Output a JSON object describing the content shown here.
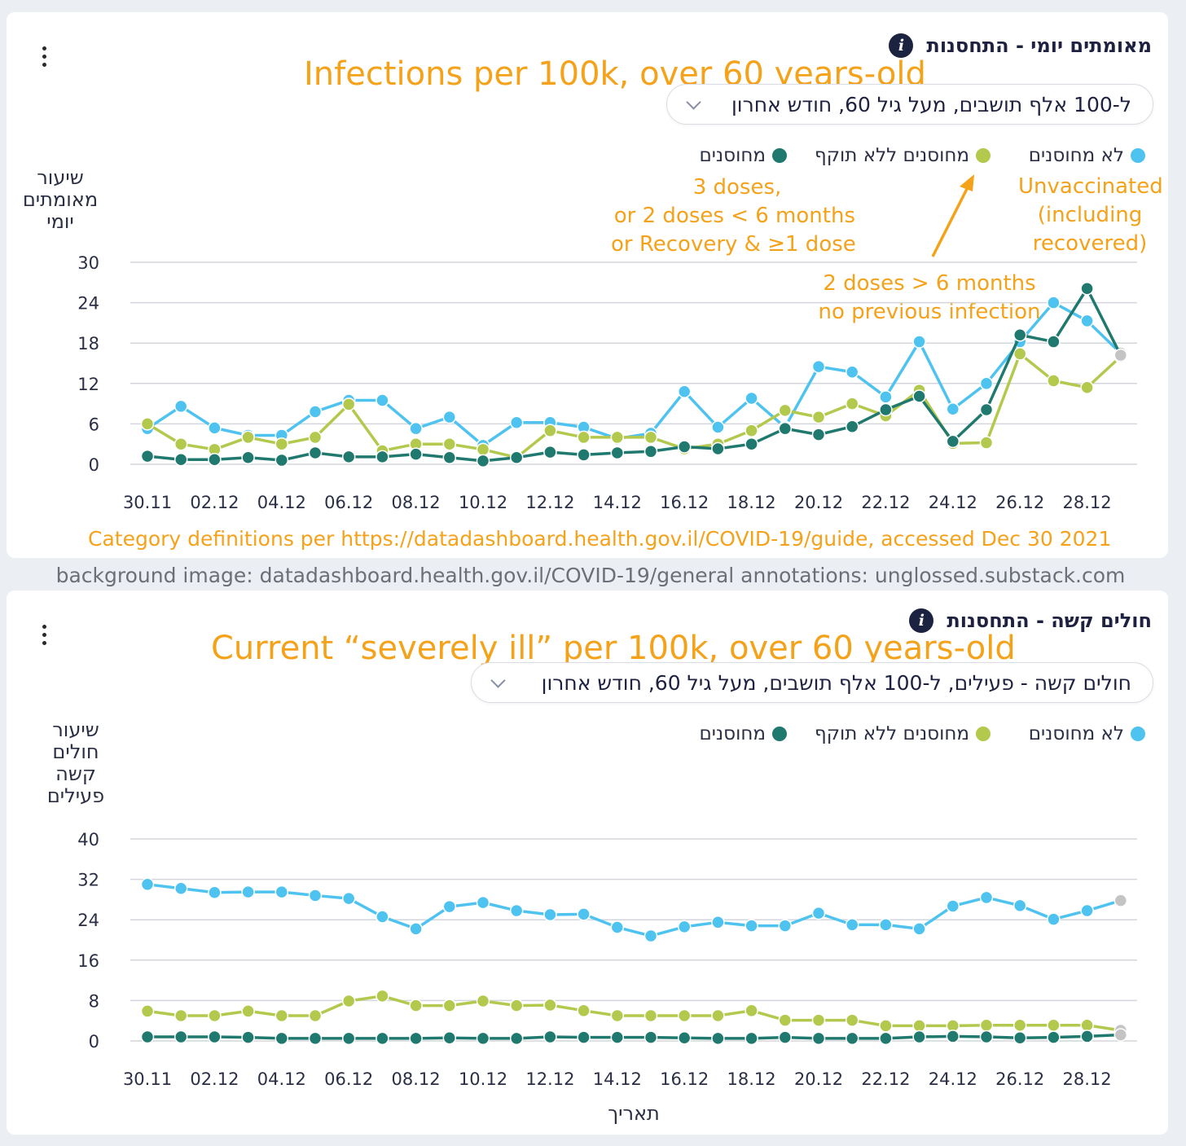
{
  "footer_credit": "background image: datadashboard.health.gov.il/COVID-19/general annotations: unglossed.substack.com",
  "colors": {
    "unvaccinated": "#4fc3f0",
    "expired": "#b2c94d",
    "protected": "#20796e",
    "grid": "#d3d6dc",
    "annotation": "#f5a21b",
    "last_point": "#c4c4c4"
  },
  "card1": {
    "title": "מאומתים יומי - התחסנות",
    "info_icon": "i",
    "annotation_title": "Infections per 100k, over 60 years-old",
    "dropdown": "ל-100 אלף תושבים, מעל גיל 60, חודש אחרון",
    "legend": [
      "לא מחוסנים",
      "מחוסנים ללא תוקף",
      "מחוסנים"
    ],
    "ylabel": [
      "שיעור",
      "מאומתים",
      "יומי"
    ],
    "annotations": {
      "unvaccinated": [
        "Unvaccinated",
        "(including",
        "recovered)"
      ],
      "protected": [
        "3 doses,",
        "or 2 doses < 6 months",
        "or Recovery & ≥1 dose"
      ],
      "expired": [
        "2 doses > 6 months",
        "no previous infection"
      ],
      "source": "Category definitions per https://datadashboard.health.gov.il/COVID-19/guide, accessed Dec 30 2021"
    }
  },
  "card2": {
    "title": "חולים קשה - התחסנות",
    "info_icon": "i",
    "annotation_title": "Current “severely ill” per 100k, over 60 years-old",
    "dropdown": "חולים קשה - פעילים, ל-100 אלף תושבים, מעל גיל 60, חודש אחרון",
    "legend": [
      "לא מחוסנים",
      "מחוסנים ללא תוקף",
      "מחוסנים"
    ],
    "ylabel": [
      "שיעור",
      "חולים",
      "קשה",
      "פעילים"
    ],
    "xlabel": "תאריך"
  },
  "chart_data": [
    {
      "type": "line",
      "title": "Infections per 100k, over 60 years-old",
      "ylabel": "שיעור מאומתים יומי",
      "ylim": [
        0,
        30
      ],
      "yticks": [
        0,
        6,
        12,
        18,
        24,
        30
      ],
      "x": [
        "30.11",
        "01.12",
        "02.12",
        "03.12",
        "04.12",
        "05.12",
        "06.12",
        "07.12",
        "08.12",
        "09.12",
        "10.12",
        "11.12",
        "12.12",
        "13.12",
        "14.12",
        "15.12",
        "16.12",
        "17.12",
        "18.12",
        "19.12",
        "20.12",
        "21.12",
        "22.12",
        "23.12",
        "24.12",
        "25.12",
        "26.12",
        "27.12",
        "28.12",
        "29.12"
      ],
      "xtick_labels": [
        "30.11",
        "02.12",
        "04.12",
        "06.12",
        "08.12",
        "10.12",
        "12.12",
        "14.12",
        "16.12",
        "18.12",
        "20.12",
        "22.12",
        "24.12",
        "26.12",
        "28.12"
      ],
      "grid": true,
      "legend_position": "top-right",
      "series": [
        {
          "name": "לא מחוסנים",
          "color": "#4fc3f0",
          "values": [
            5.3,
            8.6,
            5.4,
            4.3,
            4.3,
            7.8,
            9.5,
            9.5,
            5.3,
            7.0,
            2.8,
            6.2,
            6.2,
            5.5,
            3.8,
            4.6,
            10.8,
            5.5,
            9.8,
            5.5,
            14.5,
            13.7,
            10.0,
            18.2,
            8.2,
            12.0,
            18.2,
            24.0,
            21.3,
            16.5
          ]
        },
        {
          "name": "מחוסנים ללא תוקף",
          "color": "#b2c94d",
          "values": [
            6.0,
            3.0,
            2.2,
            4.0,
            3.0,
            4.0,
            8.9,
            2.0,
            3.0,
            3.0,
            2.2,
            1.0,
            5.0,
            4.0,
            4.0,
            4.0,
            2.3,
            3.0,
            5.0,
            8.0,
            7.0,
            9.0,
            7.2,
            11.0,
            3.1,
            3.2,
            16.4,
            12.4,
            11.4,
            16.0
          ]
        },
        {
          "name": "מחוסנים",
          "color": "#20796e",
          "values": [
            1.2,
            0.7,
            0.7,
            1.0,
            0.6,
            1.7,
            1.1,
            1.1,
            1.5,
            1.0,
            0.5,
            1.0,
            1.8,
            1.4,
            1.7,
            1.9,
            2.6,
            2.3,
            3.0,
            5.3,
            4.4,
            5.6,
            8.1,
            10.1,
            3.4,
            8.1,
            19.2,
            18.2,
            26.1,
            16.2
          ]
        }
      ]
    },
    {
      "type": "line",
      "title": "Current “severely ill” per 100k, over 60 years-old",
      "xlabel": "תאריך",
      "ylabel": "שיעור חולים קשה פעילים",
      "ylim": [
        0,
        40
      ],
      "yticks": [
        0,
        8,
        16,
        24,
        32,
        40
      ],
      "x": [
        "30.11",
        "01.12",
        "02.12",
        "03.12",
        "04.12",
        "05.12",
        "06.12",
        "07.12",
        "08.12",
        "09.12",
        "10.12",
        "11.12",
        "12.12",
        "13.12",
        "14.12",
        "15.12",
        "16.12",
        "17.12",
        "18.12",
        "19.12",
        "20.12",
        "21.12",
        "22.12",
        "23.12",
        "24.12",
        "25.12",
        "26.12",
        "27.12",
        "28.12",
        "29.12"
      ],
      "xtick_labels": [
        "30.11",
        "02.12",
        "04.12",
        "06.12",
        "08.12",
        "10.12",
        "12.12",
        "14.12",
        "16.12",
        "18.12",
        "20.12",
        "22.12",
        "24.12",
        "26.12",
        "28.12"
      ],
      "grid": true,
      "legend_position": "top-right",
      "series": [
        {
          "name": "לא מחוסנים",
          "color": "#4fc3f0",
          "values": [
            31.0,
            30.2,
            29.4,
            29.5,
            29.5,
            28.8,
            28.2,
            24.6,
            22.2,
            26.6,
            27.4,
            25.8,
            25.0,
            25.1,
            22.5,
            20.8,
            22.6,
            23.5,
            22.8,
            22.8,
            25.3,
            23.0,
            23.0,
            22.2,
            26.7,
            28.4,
            26.8,
            24.1,
            25.8,
            27.8
          ]
        },
        {
          "name": "מחוסנים ללא תוקף",
          "color": "#b2c94d",
          "values": [
            5.9,
            5.0,
            5.0,
            5.9,
            5.0,
            5.0,
            7.9,
            8.9,
            7.0,
            7.0,
            7.9,
            7.0,
            7.1,
            6.0,
            5.0,
            5.0,
            5.0,
            5.0,
            6.0,
            4.1,
            4.1,
            4.1,
            3.0,
            3.0,
            3.0,
            3.1,
            3.1,
            3.1,
            3.1,
            2.1
          ]
        },
        {
          "name": "מחוסנים",
          "color": "#20796e",
          "values": [
            0.8,
            0.8,
            0.8,
            0.7,
            0.5,
            0.5,
            0.5,
            0.5,
            0.5,
            0.6,
            0.5,
            0.5,
            0.8,
            0.7,
            0.7,
            0.7,
            0.6,
            0.5,
            0.5,
            0.7,
            0.5,
            0.5,
            0.5,
            0.8,
            0.9,
            0.8,
            0.6,
            0.7,
            0.9,
            1.2
          ]
        }
      ]
    }
  ]
}
